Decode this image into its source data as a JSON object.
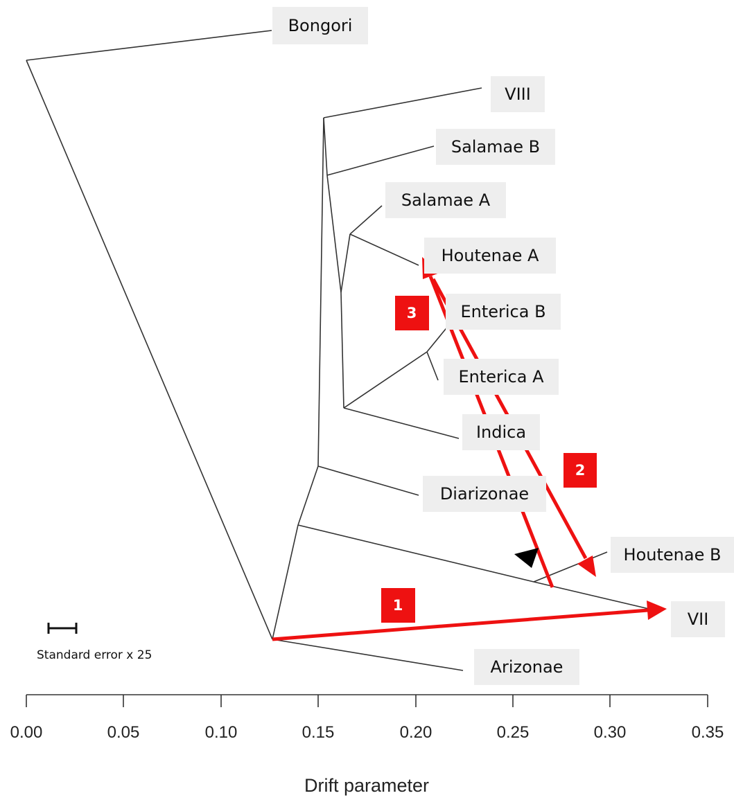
{
  "tree": {
    "leaves": [
      {
        "id": "bongori",
        "label": "Bongori"
      },
      {
        "id": "viii",
        "label": "VIII"
      },
      {
        "id": "salamae-b",
        "label": "Salamae B"
      },
      {
        "id": "salamae-a",
        "label": "Salamae A"
      },
      {
        "id": "houtenae-a",
        "label": "Houtenae A"
      },
      {
        "id": "enterica-b",
        "label": "Enterica B"
      },
      {
        "id": "enterica-a",
        "label": "Enterica A"
      },
      {
        "id": "indica",
        "label": "Indica"
      },
      {
        "id": "diarizonae",
        "label": "Diarizonae"
      },
      {
        "id": "houtenae-b",
        "label": "Houtenae B"
      },
      {
        "id": "vii",
        "label": "VII"
      },
      {
        "id": "arizonae",
        "label": "Arizonae"
      }
    ],
    "migration_edges": [
      {
        "label": "1",
        "from": "arizonae-vii-ancestor",
        "to": "vii"
      },
      {
        "label": "2",
        "from": "enterica-a",
        "to": "houtenae-b"
      },
      {
        "label": "3",
        "from": "houtenae-b-vii-ancestor",
        "to": "houtenae-a"
      }
    ],
    "edge_color": "#333333",
    "migration_color": "#ee1111",
    "label_box_color": "#eeeeee"
  },
  "scale_bar": {
    "label": "Standard error x 25"
  },
  "axis": {
    "title": "Drift parameter",
    "ticks": [
      "0.00",
      "0.05",
      "0.10",
      "0.15",
      "0.20",
      "0.25",
      "0.30",
      "0.35"
    ]
  }
}
